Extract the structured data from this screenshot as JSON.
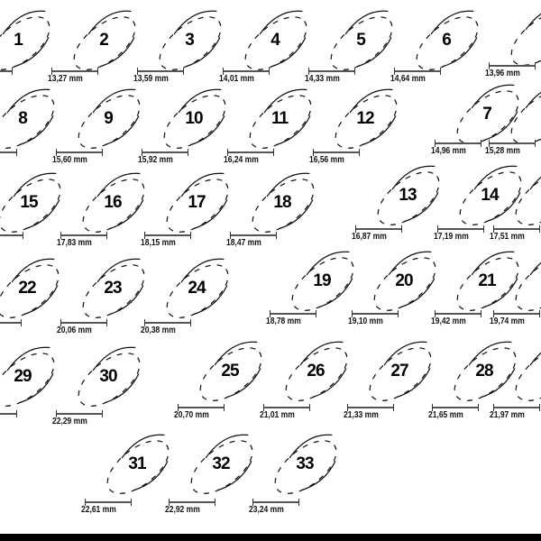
{
  "rings": [
    {
      "size": "1",
      "mm": ""
    },
    {
      "size": "2",
      "mm": "13,27 mm"
    },
    {
      "size": "3",
      "mm": "13,59 mm"
    },
    {
      "size": "4",
      "mm": "14,01 mm"
    },
    {
      "size": "5",
      "mm": "14,33 mm"
    },
    {
      "size": "6",
      "mm": "14,64 mm"
    },
    {
      "size": "",
      "mm": "13,96 mm"
    },
    {
      "size": "8",
      "mm": ""
    },
    {
      "size": "9",
      "mm": "15,60 mm"
    },
    {
      "size": "10",
      "mm": "15,92 mm"
    },
    {
      "size": "11",
      "mm": "16,24 mm"
    },
    {
      "size": "12",
      "mm": "16,56 mm"
    },
    {
      "size": "7",
      "mm": "14,96 mm"
    },
    {
      "size": "",
      "mm": "15,28 mm"
    },
    {
      "size": "15",
      "mm": ""
    },
    {
      "size": "16",
      "mm": "17,83 mm"
    },
    {
      "size": "17",
      "mm": "18,15 mm"
    },
    {
      "size": "18",
      "mm": "18,47 mm"
    },
    {
      "size": "13",
      "mm": "16,87 mm"
    },
    {
      "size": "14",
      "mm": "17,19 mm"
    },
    {
      "size": "",
      "mm": "17,51 mm"
    },
    {
      "size": "22",
      "mm": ""
    },
    {
      "size": "23",
      "mm": "20,06 mm"
    },
    {
      "size": "24",
      "mm": "20,38 mm"
    },
    {
      "size": "19",
      "mm": "18,78 mm"
    },
    {
      "size": "20",
      "mm": "19,10 mm"
    },
    {
      "size": "21",
      "mm": "19,42 mm"
    },
    {
      "size": "",
      "mm": "19,74 mm"
    },
    {
      "size": "29",
      "mm": ""
    },
    {
      "size": "30",
      "mm": "22,29 mm"
    },
    {
      "size": "25",
      "mm": "20,70 mm"
    },
    {
      "size": "26",
      "mm": "21,01 mm"
    },
    {
      "size": "27",
      "mm": "21,33 mm"
    },
    {
      "size": "28",
      "mm": "21,65 mm"
    },
    {
      "size": "",
      "mm": "21,97 mm"
    },
    {
      "size": "31",
      "mm": "22,61 mm"
    },
    {
      "size": "32",
      "mm": "22,92 mm"
    },
    {
      "size": "33",
      "mm": "23,24 mm"
    }
  ]
}
